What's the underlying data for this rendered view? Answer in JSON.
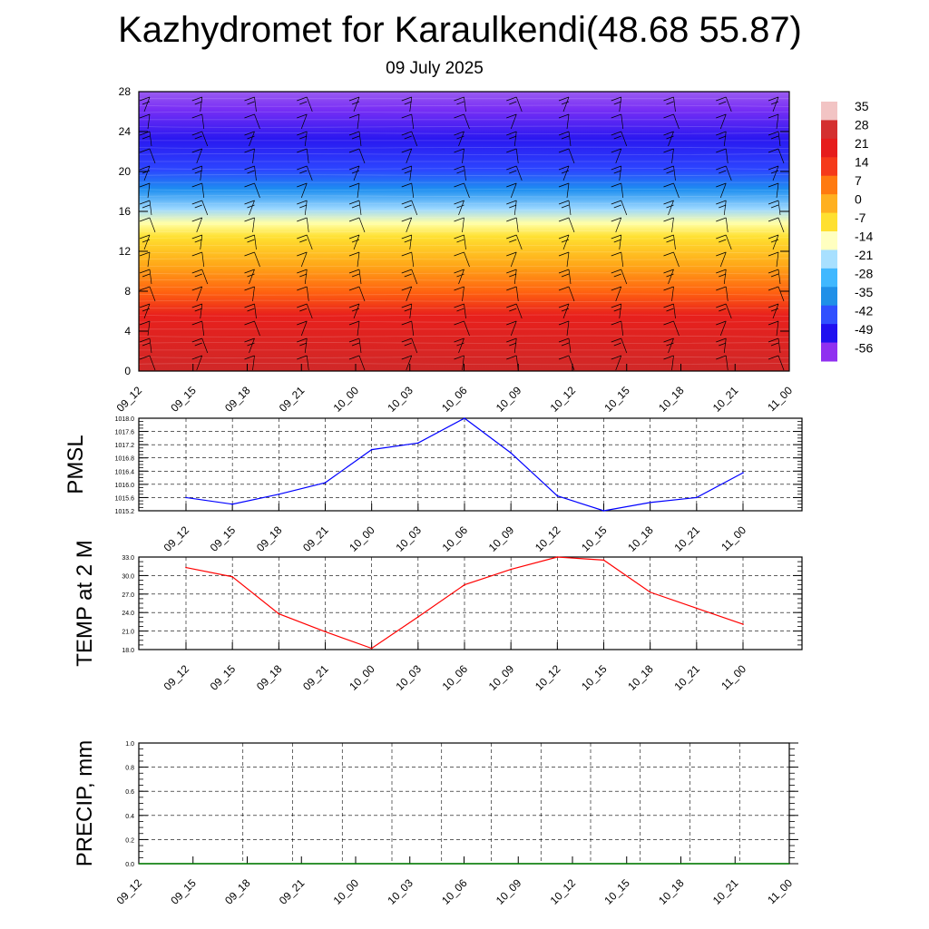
{
  "header": {
    "title": "Kazhydromet for Karaulkendi(48.68 55.87)",
    "subtitle": "09 July 2025"
  },
  "chart_data": [
    {
      "type": "heatmap",
      "title": "",
      "ylim": [
        0,
        28
      ],
      "y_ticks": [
        "0",
        "4",
        "8",
        "12",
        "16",
        "20",
        "24",
        "28"
      ],
      "x_ticks": [
        "09_12",
        "09_15",
        "09_18",
        "09_21",
        "10_00",
        "10_03",
        "10_06",
        "10_09",
        "10_12",
        "10_15",
        "10_18",
        "10_21",
        "11_00"
      ],
      "colorbar": {
        "labels": [
          "35",
          "28",
          "21",
          "14",
          "7",
          "0",
          "-7",
          "-14",
          "-21",
          "-28",
          "-35",
          "-42",
          "-49",
          "-56"
        ],
        "colors": [
          "#f2c4c4",
          "#d43030",
          "#e61c1c",
          "#f53a1a",
          "#ff7a10",
          "#ffb020",
          "#ffe030",
          "#ffffc0",
          "#a8e0ff",
          "#40b8ff",
          "#2090e8",
          "#3050ff",
          "#2010f0",
          "#9030f0"
        ]
      },
      "grid": false
    },
    {
      "type": "line",
      "ylabel": "PMSL",
      "x": [
        "09_12",
        "09_15",
        "09_18",
        "09_21",
        "10_00",
        "10_03",
        "10_06",
        "10_09",
        "10_12",
        "10_15",
        "10_18",
        "10_21",
        "11_00"
      ],
      "values": [
        1015.6,
        1015.4,
        1015.7,
        1016.05,
        1017.05,
        1017.25,
        1018.0,
        1016.95,
        1015.65,
        1015.2,
        1015.45,
        1015.6,
        1016.35
      ],
      "ylim": [
        1015.2,
        1018.0
      ],
      "y_ticks": [
        "1015.2",
        "1015.6",
        "1016.0",
        "1016.4",
        "1016.8",
        "1017.2",
        "1017.6",
        "1018.0"
      ],
      "color": "#0000ff",
      "grid": true
    },
    {
      "type": "line",
      "ylabel": "TEMP at 2 M",
      "x": [
        "09_12",
        "09_15",
        "09_18",
        "09_21",
        "10_00",
        "10_03",
        "10_06",
        "10_09",
        "10_12",
        "10_15",
        "10_18",
        "10_21",
        "11_00"
      ],
      "values": [
        31.3,
        29.8,
        23.8,
        20.9,
        18.2,
        23.3,
        28.5,
        31.0,
        33.0,
        32.5,
        27.3,
        24.7,
        22.1
      ],
      "ylim": [
        18.0,
        33.0
      ],
      "y_ticks": [
        "18.0",
        "21.0",
        "24.0",
        "27.0",
        "30.0",
        "33.0"
      ],
      "color": "#ff0000",
      "grid": true
    },
    {
      "type": "line",
      "ylabel": "PRECIP, mm",
      "x": [
        "09_12",
        "09_15",
        "09_18",
        "09_21",
        "10_00",
        "10_03",
        "10_06",
        "10_09",
        "10_12",
        "10_15",
        "10_18",
        "10_21",
        "11_00"
      ],
      "values": [
        0,
        0,
        0,
        0,
        0,
        0,
        0,
        0,
        0,
        0,
        0,
        0,
        0
      ],
      "ylim": [
        0.0,
        1.0
      ],
      "y_ticks": [
        "0.0",
        "0.2",
        "0.4",
        "0.6",
        "0.8",
        "1.0"
      ],
      "color": "#008000",
      "grid": true
    }
  ]
}
